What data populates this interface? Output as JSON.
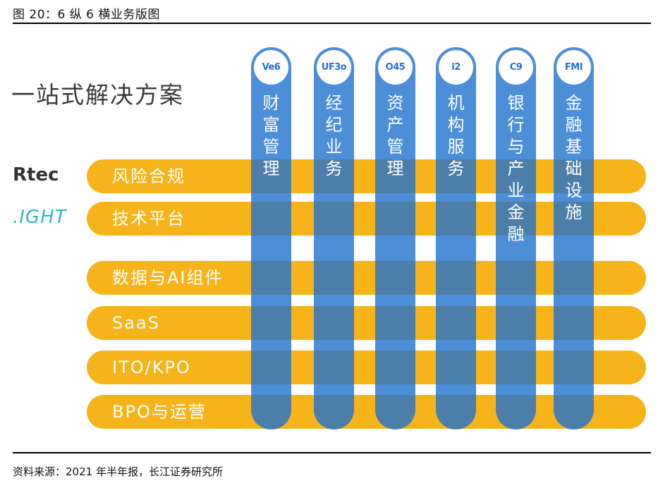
{
  "caption": "图 20：6 纵 6 横业务版图",
  "headline": "一站式解决方案",
  "brands": {
    "rtec": "Rtec",
    "light": ".IGHT"
  },
  "rows": [
    {
      "label": "风险合规"
    },
    {
      "label": "技术平台"
    },
    {
      "label": "数据与AI组件"
    },
    {
      "label": "SaaS"
    },
    {
      "label": "ITO/KPO"
    },
    {
      "label": "BPO与运营"
    }
  ],
  "columns": [
    {
      "icon": "Ve6",
      "chars": [
        "财",
        "富",
        "管",
        "理"
      ]
    },
    {
      "icon": "UF3o",
      "chars": [
        "经",
        "纪",
        "业",
        "务"
      ]
    },
    {
      "icon": "O45",
      "chars": [
        "资",
        "产",
        "管",
        "理"
      ]
    },
    {
      "icon": "i2",
      "chars": [
        "机",
        "构",
        "服",
        "务"
      ]
    },
    {
      "icon": "C9",
      "chars": [
        "银",
        "行",
        "与",
        "产",
        "业",
        "金",
        "融"
      ]
    },
    {
      "icon": "FMI",
      "chars": [
        "金",
        "融",
        "基",
        "础",
        "设",
        "施"
      ]
    }
  ],
  "source": "资料来源：2021 年半年报，长江证券研究所",
  "colors": {
    "row_bar": "#f6b41a",
    "column_bar": "#2072ce"
  }
}
